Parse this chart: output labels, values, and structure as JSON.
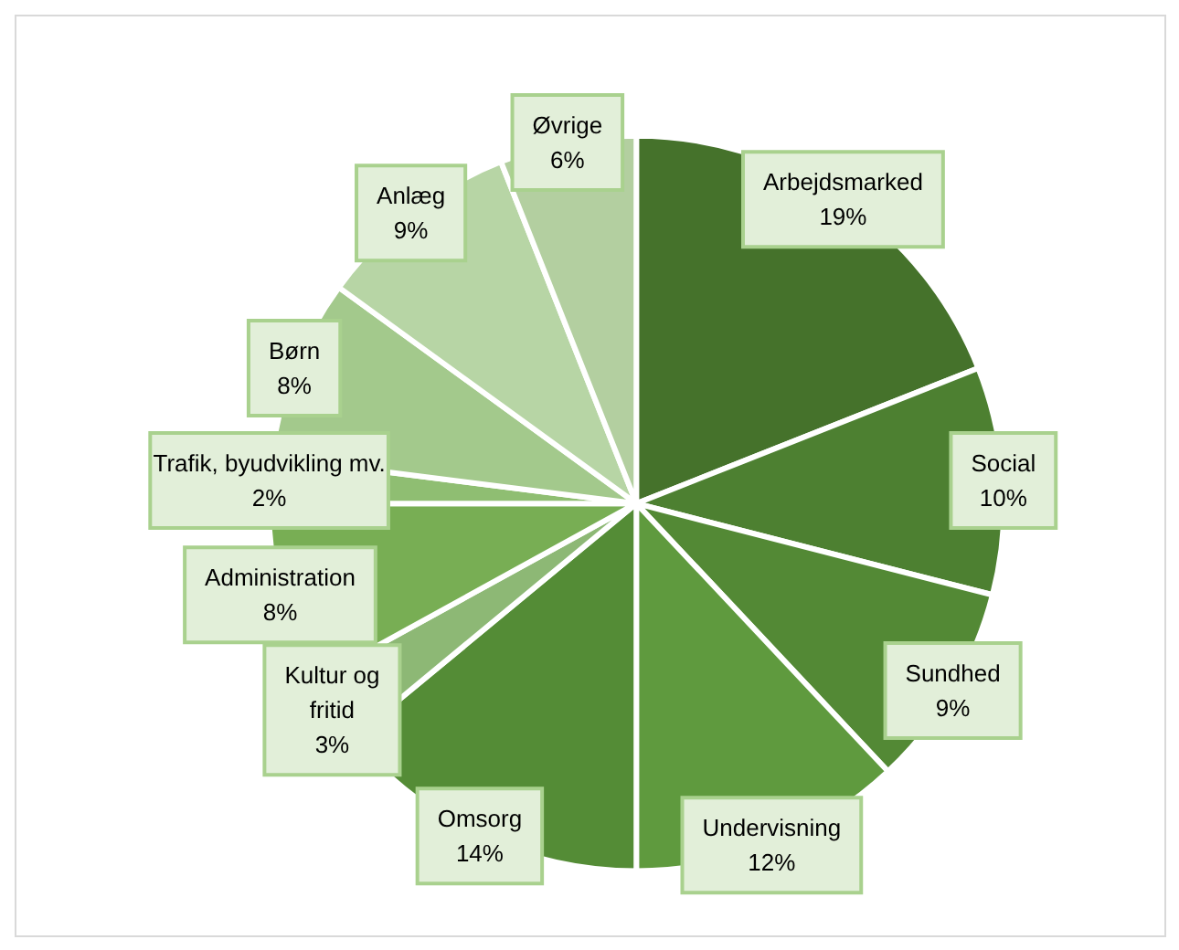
{
  "chart_data": {
    "type": "pie",
    "categories": [
      "Arbejdsmarked",
      "Social",
      "Sundhed",
      "Undervisning",
      "Omsorg",
      "Kultur og\nfritid",
      "Administration",
      "Trafik, byudvikling mv.",
      "Børn",
      "Anlæg",
      "Øvrige"
    ],
    "values": [
      19,
      10,
      9,
      12,
      14,
      3,
      8,
      2,
      8,
      9,
      6
    ],
    "colors": [
      "#45722b",
      "#4d8031",
      "#538935",
      "#5f9a3e",
      "#548c36",
      "#8db875",
      "#78ae54",
      "#8fbe72",
      "#a3c98c",
      "#b7d5a5",
      "#b3cfa0"
    ],
    "value_labels": [
      "19%",
      "10%",
      "9%",
      "12%",
      "14%",
      "3%",
      "8%",
      "2%",
      "8%",
      "9%",
      "6%"
    ],
    "legend": false
  }
}
